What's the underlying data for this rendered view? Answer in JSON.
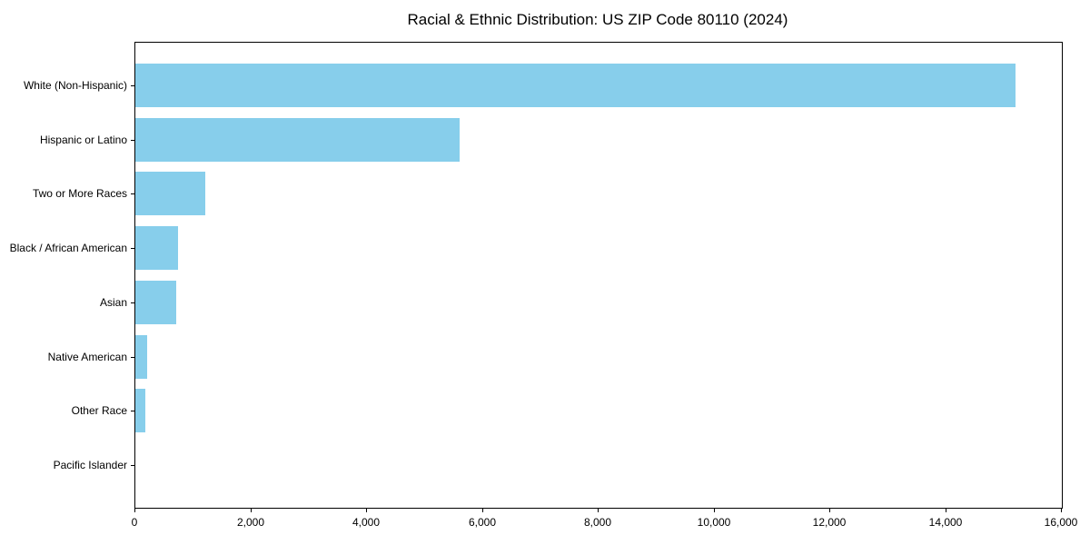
{
  "chart_data": {
    "type": "bar",
    "orientation": "horizontal",
    "title": "Racial & Ethnic Distribution: US ZIP Code 80110 (2024)",
    "categories": [
      "White (Non-Hispanic)",
      "Hispanic or Latino",
      "Two or More Races",
      "Black / African American",
      "Asian",
      "Native American",
      "Other Race",
      "Pacific Islander"
    ],
    "values": [
      15200,
      5600,
      1200,
      740,
      700,
      200,
      170,
      0
    ],
    "xlabel": "",
    "ylabel": "",
    "xlim": [
      0,
      16000
    ],
    "xticks": [
      0,
      2000,
      4000,
      6000,
      8000,
      10000,
      12000,
      14000,
      16000
    ],
    "xtick_labels": [
      "0",
      "2,000",
      "4,000",
      "6,000",
      "8,000",
      "10,000",
      "12,000",
      "14,000",
      "16,000"
    ],
    "bar_color": "#87CEEB",
    "frame_color": "#000000",
    "grid": false,
    "legend_position": "none"
  }
}
